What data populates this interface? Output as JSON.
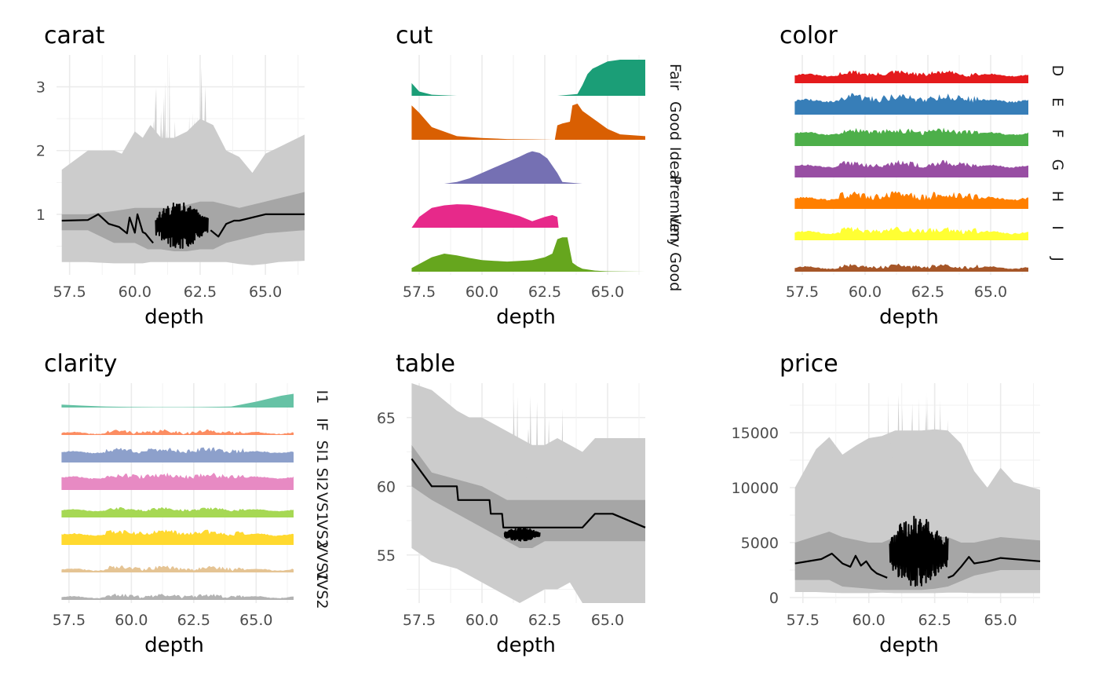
{
  "figure": {
    "background": "#ffffff",
    "xlabel": "depth"
  },
  "chart_data": [
    {
      "type": "area",
      "title": "carat",
      "xlabel": "depth",
      "xlim": [
        57,
        66.5
      ],
      "xticks": [
        57.5,
        60.0,
        62.5,
        65.0
      ],
      "ylim": [
        0.05,
        3.5
      ],
      "yticks": [
        1,
        2,
        3
      ],
      "outer_band_color": "#cccccc",
      "inner_band_color": "#a6a6a6",
      "line_color": "#000000",
      "series": [
        {
          "name": "outer_band",
          "x": [
            57.2,
            58.2,
            59.2,
            59.5,
            60.0,
            60.3,
            60.6,
            61.0,
            61.5,
            62.0,
            62.5,
            63.0,
            63.5,
            64.0,
            64.5,
            65.0,
            65.5,
            66.5
          ],
          "lower": [
            0.25,
            0.25,
            0.23,
            0.23,
            0.23,
            0.23,
            0.25,
            0.25,
            0.25,
            0.25,
            0.25,
            0.25,
            0.25,
            0.22,
            0.2,
            0.22,
            0.25,
            0.27
          ],
          "upper": [
            1.7,
            2.0,
            2.0,
            1.95,
            2.3,
            2.2,
            2.4,
            2.2,
            2.2,
            2.3,
            2.5,
            2.4,
            2.0,
            1.9,
            1.65,
            1.95,
            2.05,
            2.25
          ]
        },
        {
          "name": "inner_band",
          "x": [
            57.2,
            58.2,
            59.2,
            60.0,
            60.5,
            61.0,
            61.5,
            62.0,
            62.5,
            63.0,
            63.5,
            64.0,
            65.0,
            66.5
          ],
          "lower": [
            0.75,
            0.75,
            0.55,
            0.55,
            0.45,
            0.45,
            0.42,
            0.42,
            0.45,
            0.45,
            0.55,
            0.6,
            0.7,
            0.75
          ],
          "upper": [
            1.0,
            1.0,
            1.05,
            1.1,
            1.1,
            1.1,
            1.1,
            1.15,
            1.2,
            1.2,
            1.15,
            1.1,
            1.2,
            1.35
          ]
        },
        {
          "name": "median",
          "x": [
            57.2,
            58.2,
            58.6,
            59.0,
            59.4,
            59.7,
            59.8,
            60.0,
            60.1,
            60.3,
            60.4,
            60.6,
            60.7
          ],
          "y": [
            0.9,
            0.91,
            1.0,
            0.85,
            0.8,
            0.7,
            0.95,
            0.71,
            1.0,
            0.72,
            0.7,
            0.6,
            0.55
          ]
        },
        {
          "name": "median_right",
          "x": [
            62.9,
            63.2,
            63.5,
            63.8,
            64.0,
            65.0,
            66.5
          ],
          "y": [
            0.75,
            0.65,
            0.85,
            0.9,
            0.9,
            1.0,
            1.0
          ]
        },
        {
          "name": "median_dense",
          "x_range": [
            60.8,
            62.8
          ],
          "y_range": [
            0.45,
            1.2
          ]
        }
      ]
    },
    {
      "type": "area",
      "title": "cut",
      "xlabel": "depth",
      "xlim": [
        57,
        66.5
      ],
      "xticks": [
        57.5,
        60.0,
        62.5,
        65.0
      ],
      "facets": [
        {
          "label": "Fair",
          "color": "#1b9e77",
          "x": [
            57.2,
            57.5,
            58.0,
            59.0,
            60.0,
            61.0,
            62.0,
            63.0,
            63.8,
            64.0,
            64.2,
            64.4,
            65.0,
            65.5,
            66.5
          ],
          "y": [
            0.35,
            0.12,
            0.03,
            0.0,
            0.0,
            0.0,
            0.0,
            0.0,
            0.05,
            0.3,
            0.6,
            0.75,
            0.95,
            1.0,
            1.0
          ]
        },
        {
          "label": "Good",
          "color": "#d95f02",
          "x": [
            57.2,
            57.5,
            58.0,
            59.0,
            60.0,
            61.0,
            62.0,
            62.9,
            63.0,
            63.2,
            63.5,
            63.6,
            63.8,
            64.0,
            64.5,
            65.0,
            65.5,
            66.5
          ],
          "y": [
            0.95,
            0.75,
            0.35,
            0.1,
            0.05,
            0.02,
            0.01,
            0.0,
            0.4,
            0.45,
            0.5,
            0.95,
            1.0,
            0.8,
            0.55,
            0.3,
            0.15,
            0.1
          ]
        },
        {
          "label": "Ideal",
          "color": "#7570b3",
          "x": [
            58.5,
            59.0,
            59.5,
            60.0,
            60.5,
            61.0,
            61.5,
            61.8,
            62.0,
            62.3,
            62.6,
            63.0,
            63.2,
            64.0,
            66.5
          ],
          "y": [
            0.0,
            0.05,
            0.15,
            0.3,
            0.45,
            0.6,
            0.75,
            0.85,
            0.9,
            0.85,
            0.7,
            0.3,
            0.05,
            0.0,
            0.0
          ]
        },
        {
          "label": "Premium",
          "color": "#e7298a",
          "x": [
            57.2,
            57.5,
            58.0,
            58.5,
            59.0,
            59.5,
            60.0,
            60.5,
            61.0,
            61.5,
            62.0,
            62.5,
            62.8,
            63.0,
            63.05
          ],
          "y": [
            0.0,
            0.3,
            0.55,
            0.62,
            0.65,
            0.64,
            0.58,
            0.5,
            0.42,
            0.32,
            0.18,
            0.3,
            0.35,
            0.3,
            0.0
          ]
        },
        {
          "label": "Very Good",
          "color": "#66a61e",
          "x": [
            57.2,
            58.0,
            58.5,
            59.0,
            59.5,
            60.0,
            60.5,
            61.0,
            61.5,
            62.0,
            62.5,
            62.8,
            63.0,
            63.2,
            63.4,
            63.6,
            63.8,
            64.0,
            64.5,
            65.0,
            66.5
          ],
          "y": [
            0.1,
            0.4,
            0.5,
            0.45,
            0.38,
            0.32,
            0.3,
            0.28,
            0.3,
            0.32,
            0.4,
            0.5,
            0.9,
            0.95,
            0.95,
            0.25,
            0.15,
            0.08,
            0.03,
            0.01,
            0.0
          ]
        }
      ]
    },
    {
      "type": "area",
      "title": "color",
      "xlabel": "depth",
      "xlim": [
        57,
        66.5
      ],
      "xticks": [
        57.5,
        60.0,
        62.5,
        65.0
      ],
      "facets": [
        {
          "label": "D",
          "color": "#e41a1c",
          "base": 0.32,
          "amp": 0.12
        },
        {
          "label": "E",
          "color": "#377eb8",
          "base": 0.55,
          "amp": 0.2
        },
        {
          "label": "F",
          "color": "#4daf4a",
          "base": 0.5,
          "amp": 0.15
        },
        {
          "label": "G",
          "color": "#984ea3",
          "base": 0.45,
          "amp": 0.15
        },
        {
          "label": "H",
          "color": "#ff7f00",
          "base": 0.4,
          "amp": 0.2
        },
        {
          "label": "I",
          "color": "#ffff33",
          "base": 0.3,
          "amp": 0.15
        },
        {
          "label": "J",
          "color": "#a65628",
          "base": 0.15,
          "amp": 0.1
        }
      ]
    },
    {
      "type": "area",
      "title": "clarity",
      "xlabel": "depth",
      "xlim": [
        57,
        66.5
      ],
      "xticks": [
        57.5,
        60.0,
        62.5,
        65.0
      ],
      "facets": [
        {
          "label": "I1",
          "color": "#66c2a5",
          "x": [
            57.2,
            58.0,
            59.0,
            60.0,
            61.0,
            62.0,
            63.0,
            64.0,
            65.0,
            66.0,
            66.5
          ],
          "y": [
            0.15,
            0.1,
            0.05,
            0.03,
            0.02,
            0.02,
            0.03,
            0.05,
            0.3,
            0.6,
            0.7
          ]
        },
        {
          "label": "IF",
          "color": "#fc8d62",
          "base": 0.08,
          "amp": 0.1
        },
        {
          "label": "SI1",
          "color": "#8da0cb",
          "base": 0.5,
          "amp": 0.15
        },
        {
          "label": "SI2",
          "color": "#e78ac3",
          "base": 0.6,
          "amp": 0.15
        },
        {
          "label": "VS1",
          "color": "#a6d854",
          "base": 0.35,
          "amp": 0.08
        },
        {
          "label": "VS2",
          "color": "#ffd92f",
          "base": 0.5,
          "amp": 0.15
        },
        {
          "label": "VVS1",
          "color": "#e5c494",
          "base": 0.12,
          "amp": 0.12
        },
        {
          "label": "VVS2",
          "color": "#b3b3b3",
          "base": 0.12,
          "amp": 0.1
        }
      ]
    },
    {
      "type": "area",
      "title": "table",
      "xlabel": "depth",
      "xlim": [
        57,
        66.5
      ],
      "xticks": [
        57.5,
        60.0,
        62.5,
        65.0
      ],
      "ylim": [
        51.5,
        67.5
      ],
      "yticks": [
        55,
        60,
        65
      ],
      "outer_band_color": "#cccccc",
      "inner_band_color": "#a6a6a6",
      "line_color": "#000000",
      "series": [
        {
          "name": "outer_band",
          "x": [
            57.2,
            58.0,
            59.0,
            59.5,
            60.0,
            60.5,
            61.0,
            61.5,
            62.0,
            62.5,
            63.0,
            63.5,
            64.0,
            64.5,
            65.0,
            65.5,
            66.5
          ],
          "lower": [
            55.5,
            54.5,
            54.0,
            53.5,
            53.0,
            52.5,
            52.0,
            51.5,
            52.0,
            52.5,
            52.5,
            53.0,
            51.5,
            51.5,
            51.5,
            51.5,
            51.5
          ],
          "upper": [
            67.5,
            67.0,
            65.5,
            65.0,
            65.0,
            64.5,
            64.0,
            63.5,
            63.0,
            63.0,
            63.5,
            63.0,
            62.5,
            63.5,
            63.5,
            63.5,
            63.5
          ]
        },
        {
          "name": "inner_band",
          "x": [
            57.2,
            58.0,
            59.0,
            60.0,
            60.5,
            61.0,
            61.5,
            62.0,
            62.5,
            63.0,
            64.0,
            65.0,
            66.5
          ],
          "lower": [
            60.0,
            59.0,
            58.0,
            57.0,
            56.5,
            56.0,
            55.5,
            55.5,
            56.0,
            56.0,
            56.0,
            56.0,
            56.0
          ],
          "upper": [
            63.0,
            61.0,
            60.5,
            60.0,
            59.5,
            59.0,
            59.0,
            59.0,
            59.0,
            59.0,
            59.0,
            59.0,
            59.0
          ]
        },
        {
          "name": "median",
          "x": [
            57.2,
            58.0,
            59.0,
            59.05,
            60.3,
            60.35,
            60.8,
            60.85,
            64.0,
            64.5,
            65.2,
            66.5
          ],
          "y": [
            62.0,
            60.0,
            60.0,
            59.0,
            59.0,
            58.0,
            58.0,
            57.0,
            57.0,
            58.0,
            58.0,
            57.0
          ]
        },
        {
          "name": "median_dense",
          "x_range": [
            60.9,
            62.3
          ],
          "y_range": [
            56.0,
            57.0
          ]
        }
      ]
    },
    {
      "type": "area",
      "title": "price",
      "xlabel": "depth",
      "xlim": [
        57,
        66.5
      ],
      "xticks": [
        57.5,
        60.0,
        62.5,
        65.0
      ],
      "ylim": [
        -500,
        19500
      ],
      "yticks": [
        0,
        5000,
        10000,
        15000
      ],
      "outer_band_color": "#cccccc",
      "inner_band_color": "#a6a6a6",
      "line_color": "#000000",
      "series": [
        {
          "name": "outer_band",
          "x": [
            57.2,
            58.0,
            58.5,
            59.0,
            59.5,
            60.0,
            60.5,
            61.0,
            61.5,
            62.0,
            62.5,
            63.0,
            63.5,
            64.0,
            64.5,
            65.0,
            65.5,
            66.5
          ],
          "lower": [
            500,
            500,
            450,
            400,
            400,
            400,
            450,
            400,
            400,
            400,
            400,
            450,
            450,
            400,
            400,
            400,
            400,
            400
          ],
          "upper": [
            10000,
            13500,
            14600,
            13000,
            13800,
            14500,
            14700,
            15200,
            15200,
            15200,
            15300,
            15200,
            14000,
            11500,
            10000,
            11800,
            10500,
            9800
          ]
        },
        {
          "name": "inner_band",
          "x": [
            57.2,
            58.5,
            59.0,
            60.0,
            60.5,
            61.0,
            61.5,
            62.0,
            62.5,
            63.0,
            63.5,
            64.0,
            65.0,
            66.5
          ],
          "lower": [
            1600,
            1600,
            1000,
            800,
            700,
            700,
            700,
            700,
            800,
            1000,
            1500,
            2000,
            2500,
            2500
          ],
          "upper": [
            5000,
            6000,
            5500,
            5000,
            5000,
            5500,
            6000,
            6000,
            5500,
            5500,
            5000,
            5000,
            5500,
            5200
          ]
        },
        {
          "name": "median",
          "x": [
            57.2,
            58.2,
            58.6,
            59.0,
            59.3,
            59.5,
            59.7,
            59.9,
            60.1,
            60.3,
            60.5,
            60.7
          ],
          "y": [
            3100,
            3500,
            4000,
            3100,
            2800,
            3800,
            2900,
            3300,
            2600,
            2200,
            2000,
            1800
          ]
        },
        {
          "name": "median_right",
          "x": [
            63.0,
            63.2,
            63.5,
            63.8,
            64.0,
            64.5,
            65.0,
            66.5
          ],
          "y": [
            1800,
            2000,
            2800,
            3700,
            3100,
            3300,
            3600,
            3300
          ]
        },
        {
          "name": "median_dense",
          "x_range": [
            60.8,
            63.0
          ],
          "y_range": [
            800,
            7500
          ]
        }
      ]
    }
  ]
}
